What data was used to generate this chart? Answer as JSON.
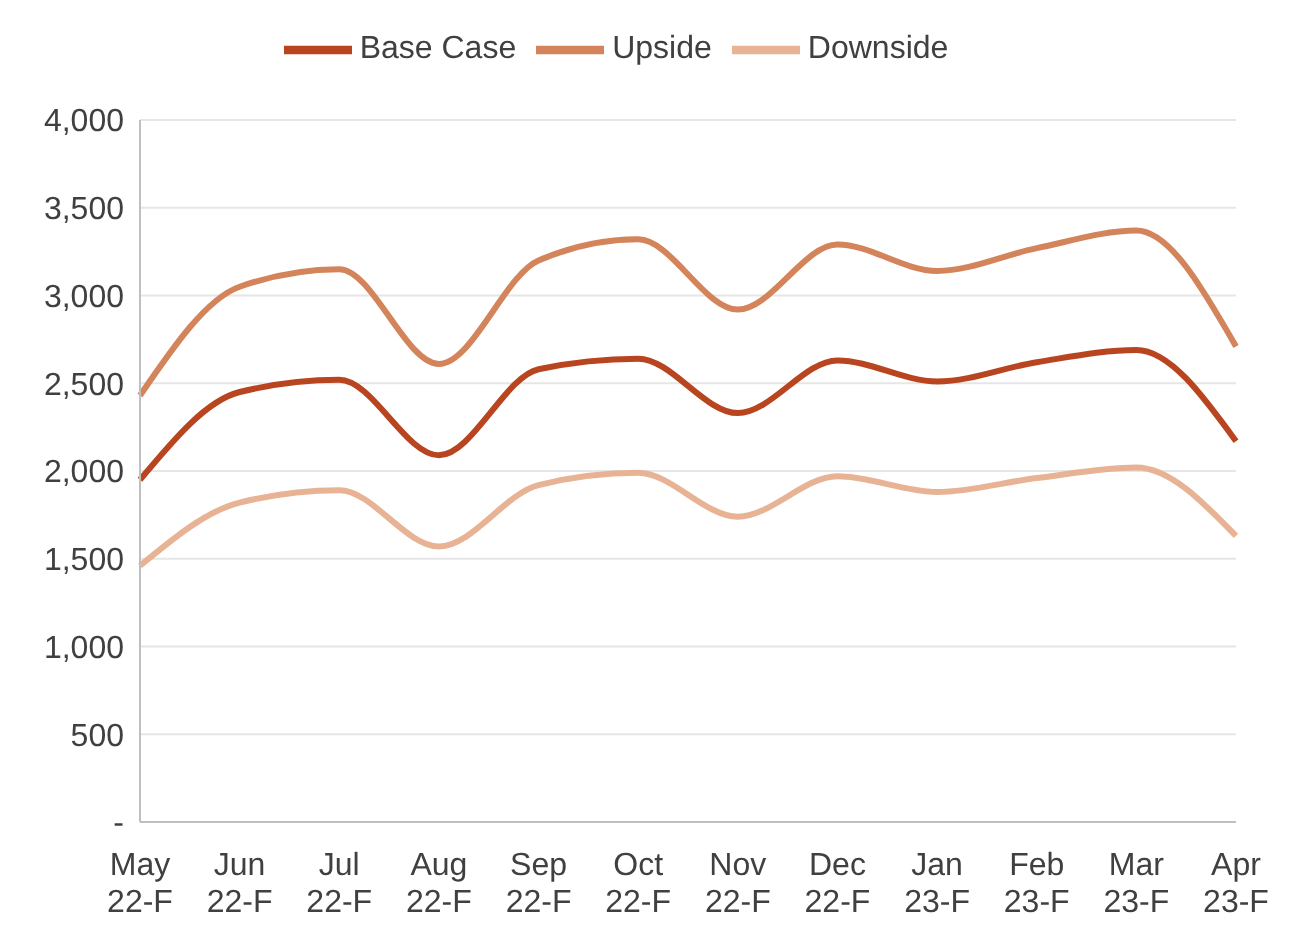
{
  "chart_data": {
    "type": "line",
    "categories": [
      "May 22-F",
      "Jun 22-F",
      "Jul 22-F",
      "Aug 22-F",
      "Sep 22-F",
      "Oct 22-F",
      "Nov 22-F",
      "Dec 22-F",
      "Jan 23-F",
      "Feb 23-F",
      "Mar 23-F",
      "Apr 23-F"
    ],
    "series": [
      {
        "name": "Base Case",
        "color": "#b8451f",
        "values": [
          1950,
          2450,
          2520,
          2090,
          2580,
          2640,
          2330,
          2630,
          2510,
          2620,
          2690,
          2170
        ]
      },
      {
        "name": "Upside",
        "color": "#d4845a",
        "values": [
          2430,
          3050,
          3150,
          2610,
          3200,
          3320,
          2920,
          3290,
          3140,
          3270,
          3370,
          2710
        ]
      },
      {
        "name": "Downside",
        "color": "#e8b395",
        "values": [
          1460,
          1820,
          1890,
          1570,
          1920,
          1990,
          1740,
          1970,
          1880,
          1960,
          2020,
          1630
        ]
      }
    ],
    "ylim": [
      0,
      4000
    ],
    "yticks": [
      {
        "value": 0,
        "label": "-"
      },
      {
        "value": 500,
        "label": "500"
      },
      {
        "value": 1000,
        "label": "1,000"
      },
      {
        "value": 1500,
        "label": "1,500"
      },
      {
        "value": 2000,
        "label": "2,000"
      },
      {
        "value": 2500,
        "label": "2,500"
      },
      {
        "value": 3000,
        "label": "3,000"
      },
      {
        "value": 3500,
        "label": "3,500"
      },
      {
        "value": 4000,
        "label": "4,000"
      }
    ],
    "grid": "y",
    "legend": "top",
    "marker": "none",
    "line_style": "solid"
  }
}
